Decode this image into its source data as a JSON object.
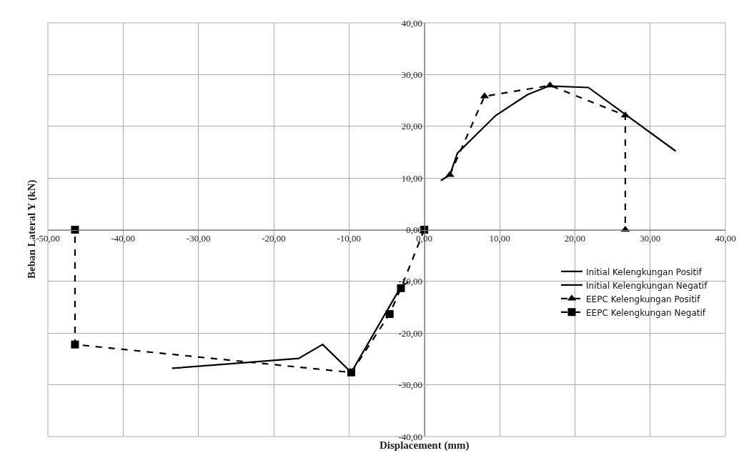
{
  "chart_data": {
    "type": "line",
    "xlabel": "Displacement (mm)",
    "ylabel": "Beban Lateral Y (kN)",
    "xlim": [
      -50,
      40
    ],
    "ylim": [
      -40,
      40
    ],
    "xticks": [
      {
        "value": -50,
        "label": "-50,00"
      },
      {
        "value": -40,
        "label": "-40,00"
      },
      {
        "value": -30,
        "label": "-30,00"
      },
      {
        "value": -20,
        "label": "-20,00"
      },
      {
        "value": -10,
        "label": "-10,00"
      },
      {
        "value": 0,
        "label": "0,00"
      },
      {
        "value": 10,
        "label": "10,00"
      },
      {
        "value": 20,
        "label": "20,00"
      },
      {
        "value": 30,
        "label": "30,00"
      },
      {
        "value": 40,
        "label": "40,00"
      }
    ],
    "yticks": [
      {
        "value": -40,
        "label": "-40,00"
      },
      {
        "value": -30,
        "label": "-30,00"
      },
      {
        "value": -20,
        "label": "-20,00"
      },
      {
        "value": -10,
        "label": "-10,00"
      },
      {
        "value": 0,
        "label": "0,00"
      },
      {
        "value": 10,
        "label": "10,00"
      },
      {
        "value": 20,
        "label": "20,00"
      },
      {
        "value": 30,
        "label": "30,00"
      },
      {
        "value": 40,
        "label": "40,00"
      }
    ],
    "grid": true,
    "legend": "right",
    "series": [
      {
        "name": "Initial Kelengkungan Positif",
        "color": "#000000",
        "marker": "none",
        "line_style": "solid",
        "x": [
          2.2,
          3.4,
          4.4,
          9.5,
          13.7,
          16.6,
          21.8,
          33.4
        ],
        "values": [
          9.5,
          10.6,
          14.8,
          22.1,
          26.1,
          27.8,
          27.5,
          15.2
        ]
      },
      {
        "name": "Initial Kelengkungan Negatif",
        "color": "#000000",
        "marker": "none",
        "line_style": "solid",
        "x": [
          -2.1,
          -3.1,
          -9.7,
          -13.5,
          -16.7,
          -33.5
        ],
        "values": [
          -10.1,
          -11.0,
          -27.6,
          -22.2,
          -24.9,
          -26.8
        ]
      },
      {
        "name": "EEPC Kelengkungan Positif",
        "color": "#000000",
        "marker": "triangle",
        "line_style": "dashed",
        "x": [
          3.4,
          8.0,
          16.7,
          26.7,
          26.7
        ],
        "values": [
          10.6,
          25.8,
          27.9,
          22.1,
          0
        ]
      },
      {
        "name": "EEPC Kelengkungan Negatif",
        "color": "#000000",
        "marker": "square",
        "line_style": "dashed",
        "x": [
          0,
          -3.1,
          -4.6,
          -9.7,
          -46.4,
          -46.4
        ],
        "values": [
          0,
          -11.3,
          -16.3,
          -27.6,
          -22.2,
          0
        ]
      }
    ]
  }
}
